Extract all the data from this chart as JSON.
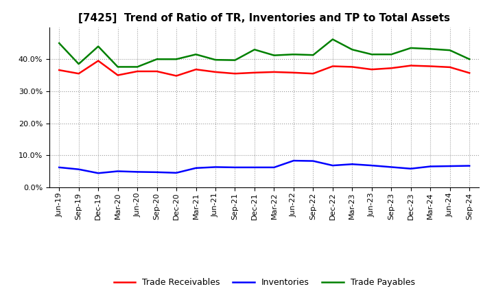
{
  "title": "[7425]  Trend of Ratio of TR, Inventories and TP to Total Assets",
  "x_labels": [
    "Jun-19",
    "Sep-19",
    "Dec-19",
    "Mar-20",
    "Jun-20",
    "Sep-20",
    "Dec-20",
    "Mar-21",
    "Jun-21",
    "Sep-21",
    "Dec-21",
    "Mar-22",
    "Jun-22",
    "Sep-22",
    "Dec-22",
    "Mar-23",
    "Jun-23",
    "Sep-23",
    "Dec-23",
    "Mar-24",
    "Jun-24",
    "Sep-24"
  ],
  "trade_receivables": [
    0.366,
    0.355,
    0.395,
    0.35,
    0.362,
    0.362,
    0.348,
    0.368,
    0.36,
    0.355,
    0.358,
    0.36,
    0.358,
    0.355,
    0.378,
    0.376,
    0.368,
    0.372,
    0.38,
    0.378,
    0.375,
    0.357
  ],
  "inventories": [
    0.062,
    0.056,
    0.044,
    0.05,
    0.048,
    0.047,
    0.045,
    0.06,
    0.063,
    0.062,
    0.062,
    0.062,
    0.083,
    0.082,
    0.068,
    0.072,
    0.068,
    0.063,
    0.058,
    0.065,
    0.066,
    0.067
  ],
  "trade_payables": [
    0.45,
    0.385,
    0.44,
    0.376,
    0.376,
    0.4,
    0.4,
    0.415,
    0.398,
    0.397,
    0.43,
    0.412,
    0.415,
    0.413,
    0.462,
    0.43,
    0.415,
    0.415,
    0.435,
    0.432,
    0.428,
    0.4
  ],
  "tr_color": "#ff0000",
  "inv_color": "#0000ff",
  "tp_color": "#008000",
  "ylim": [
    0.0,
    0.5
  ],
  "yticks": [
    0.0,
    0.1,
    0.2,
    0.3,
    0.4
  ],
  "legend_labels": [
    "Trade Receivables",
    "Inventories",
    "Trade Payables"
  ],
  "bg_color": "#ffffff",
  "grid_color": "#999999",
  "title_fontsize": 11,
  "tick_fontsize": 8,
  "legend_fontsize": 9,
  "linewidth": 1.8
}
